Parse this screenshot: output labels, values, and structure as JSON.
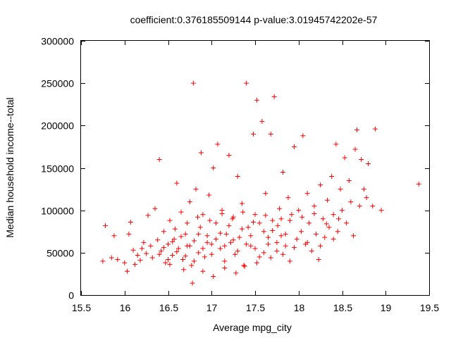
{
  "chart_data": {
    "type": "scatter",
    "title": "coefficient:0.376185509144 p-value:3.01945742202e-57",
    "xlabel": "Average mpg_city",
    "ylabel": "Median household income--total",
    "xlim": [
      15.5,
      19.5
    ],
    "ylim": [
      0,
      300000
    ],
    "x_ticks": [
      "15.5",
      "16",
      "16.5",
      "17",
      "17.5",
      "18",
      "18.5",
      "19",
      "19.5"
    ],
    "y_ticks": [
      "0",
      "50000",
      "100000",
      "150000",
      "200000",
      "250000",
      "300000"
    ],
    "grid": false,
    "legend": "none",
    "marker": "plus",
    "color": "#ff0000",
    "points": [
      [
        15.75,
        40000
      ],
      [
        15.78,
        82000
      ],
      [
        15.85,
        44000
      ],
      [
        15.88,
        70000
      ],
      [
        15.92,
        42000
      ],
      [
        16.0,
        38000
      ],
      [
        16.03,
        28000
      ],
      [
        16.05,
        72000
      ],
      [
        16.07,
        86000
      ],
      [
        16.1,
        53000
      ],
      [
        16.12,
        36000
      ],
      [
        16.15,
        47000
      ],
      [
        16.18,
        41000
      ],
      [
        16.2,
        55000
      ],
      [
        16.22,
        62000
      ],
      [
        16.25,
        49000
      ],
      [
        16.27,
        94000
      ],
      [
        16.3,
        58000
      ],
      [
        16.32,
        44000
      ],
      [
        16.35,
        102000
      ],
      [
        16.38,
        65000
      ],
      [
        16.4,
        160000
      ],
      [
        16.42,
        52000
      ],
      [
        16.45,
        75000
      ],
      [
        16.47,
        38000
      ],
      [
        16.5,
        60000
      ],
      [
        16.52,
        88000
      ],
      [
        16.55,
        47000
      ],
      [
        16.57,
        66000
      ],
      [
        16.6,
        132000
      ],
      [
        16.62,
        55000
      ],
      [
        16.65,
        98000
      ],
      [
        16.67,
        42000
      ],
      [
        16.7,
        72000
      ],
      [
        16.72,
        58000
      ],
      [
        16.75,
        110000
      ],
      [
        16.77,
        35000
      ],
      [
        16.79,
        250000
      ],
      [
        16.8,
        64000
      ],
      [
        16.82,
        125000
      ],
      [
        16.85,
        50000
      ],
      [
        16.87,
        80000
      ],
      [
        16.88,
        168000
      ],
      [
        16.9,
        95000
      ],
      [
        16.92,
        45000
      ],
      [
        16.95,
        70000
      ],
      [
        16.97,
        118000
      ],
      [
        17.0,
        60000
      ],
      [
        17.02,
        150000
      ],
      [
        17.05,
        85000
      ],
      [
        17.07,
        178000
      ],
      [
        17.1,
        55000
      ],
      [
        17.12,
        100000
      ],
      [
        17.15,
        40000
      ],
      [
        17.17,
        72000
      ],
      [
        17.2,
        165000
      ],
      [
        17.22,
        62000
      ],
      [
        17.25,
        92000
      ],
      [
        17.27,
        48000
      ],
      [
        17.3,
        140000
      ],
      [
        17.32,
        68000
      ],
      [
        17.35,
        108000
      ],
      [
        17.37,
        35000
      ],
      [
        17.4,
        250000
      ],
      [
        17.42,
        80000
      ],
      [
        17.45,
        58000
      ],
      [
        17.48,
        190000
      ],
      [
        17.5,
        95000
      ],
      [
        17.52,
        230000
      ],
      [
        17.55,
        45000
      ],
      [
        17.58,
        205000
      ],
      [
        17.6,
        75000
      ],
      [
        17.62,
        120000
      ],
      [
        17.65,
        60000
      ],
      [
        17.68,
        190000
      ],
      [
        17.7,
        88000
      ],
      [
        17.72,
        234000
      ],
      [
        17.75,
        52000
      ],
      [
        17.78,
        102000
      ],
      [
        17.8,
        70000
      ],
      [
        17.82,
        145000
      ],
      [
        17.85,
        58000
      ],
      [
        17.88,
        115000
      ],
      [
        17.9,
        40000
      ],
      [
        17.92,
        95000
      ],
      [
        17.95,
        175000
      ],
      [
        17.98,
        66000
      ],
      [
        18.0,
        100000
      ],
      [
        18.03,
        75000
      ],
      [
        18.05,
        188000
      ],
      [
        18.08,
        60000
      ],
      [
        18.1,
        120000
      ],
      [
        18.12,
        85000
      ],
      [
        18.15,
        52000
      ],
      [
        18.18,
        105000
      ],
      [
        18.2,
        72000
      ],
      [
        18.23,
        42000
      ],
      [
        18.25,
        130000
      ],
      [
        18.28,
        90000
      ],
      [
        18.3,
        68000
      ],
      [
        18.33,
        112000
      ],
      [
        18.35,
        80000
      ],
      [
        18.38,
        140000
      ],
      [
        18.4,
        95000
      ],
      [
        18.43,
        178000
      ],
      [
        18.45,
        75000
      ],
      [
        18.48,
        125000
      ],
      [
        18.5,
        100000
      ],
      [
        18.53,
        162000
      ],
      [
        18.55,
        85000
      ],
      [
        18.58,
        135000
      ],
      [
        18.6,
        110000
      ],
      [
        18.63,
        70000
      ],
      [
        18.65,
        172000
      ],
      [
        18.67,
        195000
      ],
      [
        18.7,
        105000
      ],
      [
        18.72,
        160000
      ],
      [
        18.75,
        125000
      ],
      [
        18.78,
        115000
      ],
      [
        18.8,
        155000
      ],
      [
        18.85,
        105000
      ],
      [
        18.88,
        196000
      ],
      [
        18.95,
        100000
      ],
      [
        19.38,
        131000
      ],
      [
        16.4,
        48000
      ],
      [
        16.45,
        56000
      ],
      [
        16.5,
        42000
      ],
      [
        16.55,
        63000
      ],
      [
        16.6,
        51000
      ],
      [
        16.65,
        69000
      ],
      [
        16.7,
        46000
      ],
      [
        16.75,
        58000
      ],
      [
        16.8,
        40000
      ],
      [
        16.85,
        72000
      ],
      [
        16.9,
        55000
      ],
      [
        16.95,
        62000
      ],
      [
        17.0,
        48000
      ],
      [
        17.05,
        66000
      ],
      [
        17.1,
        73000
      ],
      [
        17.15,
        58000
      ],
      [
        17.2,
        82000
      ],
      [
        17.25,
        65000
      ],
      [
        17.3,
        52000
      ],
      [
        17.35,
        78000
      ],
      [
        17.4,
        60000
      ],
      [
        17.45,
        70000
      ],
      [
        17.5,
        55000
      ],
      [
        17.55,
        85000
      ],
      [
        17.6,
        50000
      ],
      [
        17.65,
        68000
      ],
      [
        17.7,
        76000
      ],
      [
        17.75,
        62000
      ],
      [
        17.8,
        90000
      ],
      [
        17.85,
        72000
      ],
      [
        16.52,
        36000
      ],
      [
        16.68,
        30000
      ],
      [
        16.78,
        14000
      ],
      [
        16.9,
        28000
      ],
      [
        17.02,
        22000
      ],
      [
        17.15,
        32000
      ],
      [
        17.28,
        26000
      ],
      [
        17.38,
        34000
      ],
      [
        17.52,
        38000
      ],
      [
        17.68,
        44000
      ],
      [
        17.82,
        48000
      ],
      [
        17.95,
        56000
      ],
      [
        18.1,
        62000
      ],
      [
        18.25,
        58000
      ],
      [
        18.4,
        66000
      ],
      [
        16.58,
        78000
      ],
      [
        16.72,
        85000
      ],
      [
        16.84,
        92000
      ],
      [
        16.98,
        88000
      ],
      [
        17.12,
        96000
      ],
      [
        17.24,
        90000
      ],
      [
        17.36,
        98000
      ],
      [
        17.48,
        86000
      ],
      [
        17.62,
        94000
      ],
      [
        17.76,
        82000
      ],
      [
        17.9,
        88000
      ],
      [
        18.04,
        92000
      ],
      [
        18.18,
        96000
      ],
      [
        18.32,
        84000
      ],
      [
        18.46,
        90000
      ]
    ]
  }
}
